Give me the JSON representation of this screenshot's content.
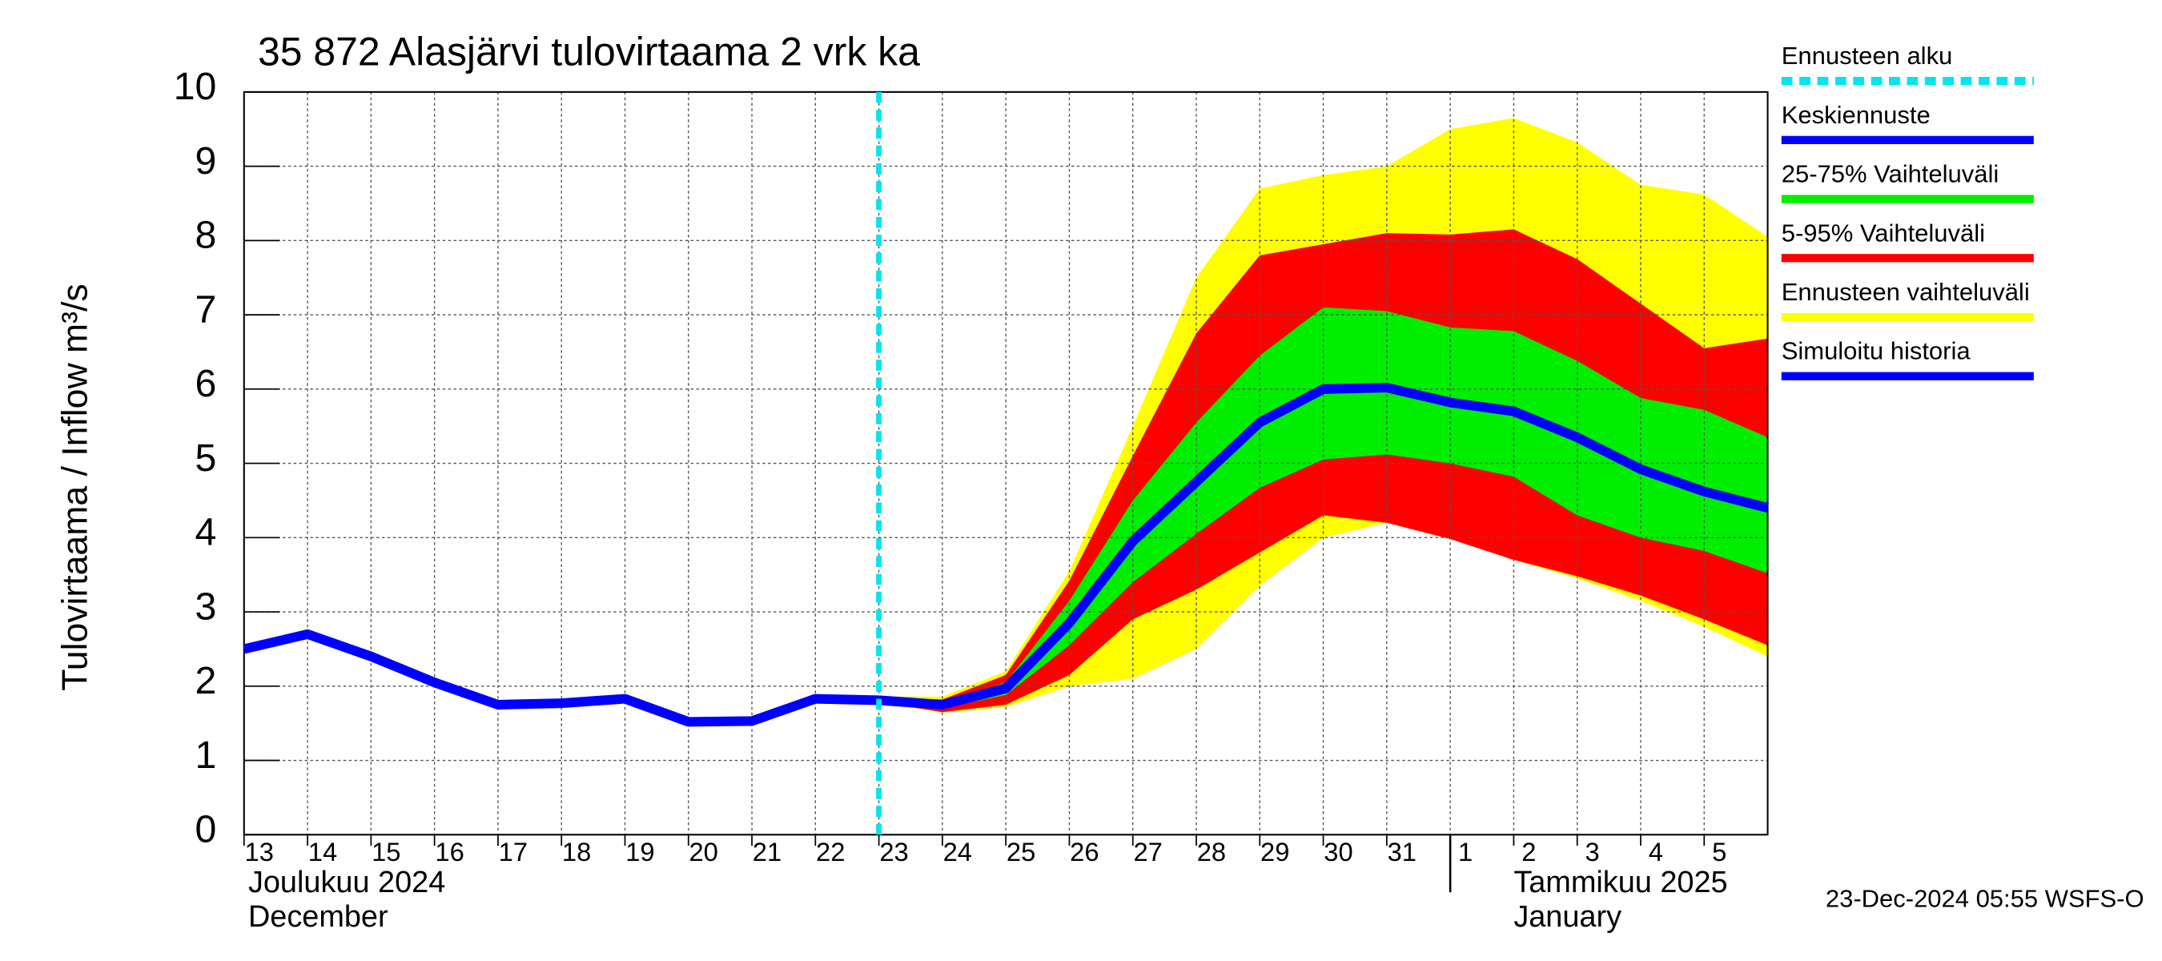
{
  "chart_data": {
    "type": "line",
    "title": "35 872 Alasjärvi tulovirtaama 2 vrk ka",
    "y_label": "Tulovirtaama / Inflow    m³/s",
    "timestamp": "23-Dec-2024 05:55 WSFS-O",
    "month_labels": [
      {
        "value": 0,
        "label": "Joulukuu  2024",
        "label_en": "December"
      },
      {
        "value": 19,
        "label": "Tammikuu  2025",
        "label_en": "January"
      }
    ],
    "xlim": [
      0,
      24
    ],
    "xticks": [
      {
        "value": 0,
        "label": "13"
      },
      {
        "value": 1,
        "label": "14"
      },
      {
        "value": 2,
        "label": "15"
      },
      {
        "value": 3,
        "label": "16"
      },
      {
        "value": 4,
        "label": "17"
      },
      {
        "value": 5,
        "label": "18"
      },
      {
        "value": 6,
        "label": "19"
      },
      {
        "value": 7,
        "label": "20"
      },
      {
        "value": 8,
        "label": "21"
      },
      {
        "value": 9,
        "label": "22"
      },
      {
        "value": 10,
        "label": "23"
      },
      {
        "value": 11,
        "label": "24"
      },
      {
        "value": 12,
        "label": "25"
      },
      {
        "value": 13,
        "label": "26"
      },
      {
        "value": 14,
        "label": "27"
      },
      {
        "value": 15,
        "label": "28"
      },
      {
        "value": 16,
        "label": "29"
      },
      {
        "value": 17,
        "label": "30"
      },
      {
        "value": 18,
        "label": "31"
      },
      {
        "value": 19,
        "label": "1"
      },
      {
        "value": 20,
        "label": "2"
      },
      {
        "value": 21,
        "label": "3"
      },
      {
        "value": 22,
        "label": "4"
      },
      {
        "value": 23,
        "label": "5"
      }
    ],
    "ylim": [
      0,
      10
    ],
    "yticks": [
      0,
      1,
      2,
      3,
      4,
      5,
      6,
      7,
      8,
      9,
      10
    ],
    "grid": true,
    "forecast_start": {
      "name": "Ennusteen alku",
      "color": "#00e5ee",
      "value": 10
    },
    "bands": [
      {
        "name": "Ennusteen vaihteluväli",
        "color": "#ffff00",
        "x": [
          10,
          11,
          12,
          13,
          14,
          15,
          16,
          17,
          18,
          19,
          20,
          21,
          22,
          23,
          24
        ],
        "upper": [
          1.86,
          1.86,
          2.2,
          3.55,
          5.5,
          7.5,
          8.7,
          8.88,
          9.0,
          9.5,
          9.65,
          9.32,
          8.75,
          8.62,
          8.05
        ],
        "lower": [
          1.78,
          1.64,
          1.72,
          2.0,
          2.1,
          2.5,
          3.35,
          4.0,
          4.2,
          3.98,
          3.7,
          3.45,
          3.15,
          2.8,
          2.4
        ]
      },
      {
        "name": "5-95% Vaihteluväli",
        "color": "#ff0000",
        "x": [
          10,
          11,
          12,
          13,
          14,
          15,
          16,
          17,
          18,
          19,
          20,
          21,
          22,
          23,
          24
        ],
        "upper": [
          1.84,
          1.82,
          2.15,
          3.42,
          5.1,
          6.75,
          7.8,
          7.95,
          8.1,
          8.08,
          8.15,
          7.75,
          7.15,
          6.55,
          6.68
        ],
        "lower": [
          1.79,
          1.65,
          1.75,
          2.15,
          2.9,
          3.3,
          3.8,
          4.3,
          4.2,
          3.98,
          3.7,
          3.48,
          3.22,
          2.9,
          2.55
        ]
      },
      {
        "name": "25-75% Vaihteluväli",
        "color": "#00ee00",
        "x": [
          10,
          11,
          12,
          13,
          14,
          15,
          16,
          17,
          18,
          19,
          20,
          21,
          22,
          23,
          24
        ],
        "upper": [
          1.82,
          1.78,
          2.05,
          3.15,
          4.5,
          5.55,
          6.45,
          7.1,
          7.05,
          6.83,
          6.78,
          6.38,
          5.88,
          5.72,
          5.35
        ],
        "lower": [
          1.8,
          1.7,
          1.88,
          2.55,
          3.4,
          4.05,
          4.67,
          5.05,
          5.12,
          5.0,
          4.82,
          4.3,
          4.0,
          3.82,
          3.52
        ]
      }
    ],
    "series": [
      {
        "name": "Keskiennuste",
        "color": "#0000ff",
        "x": [
          10,
          11,
          12,
          13,
          14,
          15,
          16,
          17,
          18,
          19,
          20,
          21,
          22,
          23,
          24
        ],
        "values": [
          1.81,
          1.75,
          1.97,
          2.85,
          3.95,
          4.75,
          5.55,
          6.0,
          6.02,
          5.82,
          5.7,
          5.35,
          4.92,
          4.62,
          4.4
        ]
      },
      {
        "name": "Simuloitu historia",
        "color": "#0000ff",
        "x": [
          0,
          1,
          2,
          3,
          4,
          5,
          6,
          7,
          8,
          9,
          10
        ],
        "values": [
          2.5,
          2.7,
          2.4,
          2.05,
          1.75,
          1.77,
          1.83,
          1.52,
          1.53,
          1.83,
          1.81
        ]
      }
    ],
    "legend": [
      "forecast_start",
      "series.0",
      "bands.2",
      "bands.1",
      "bands.0",
      "series.1"
    ]
  }
}
